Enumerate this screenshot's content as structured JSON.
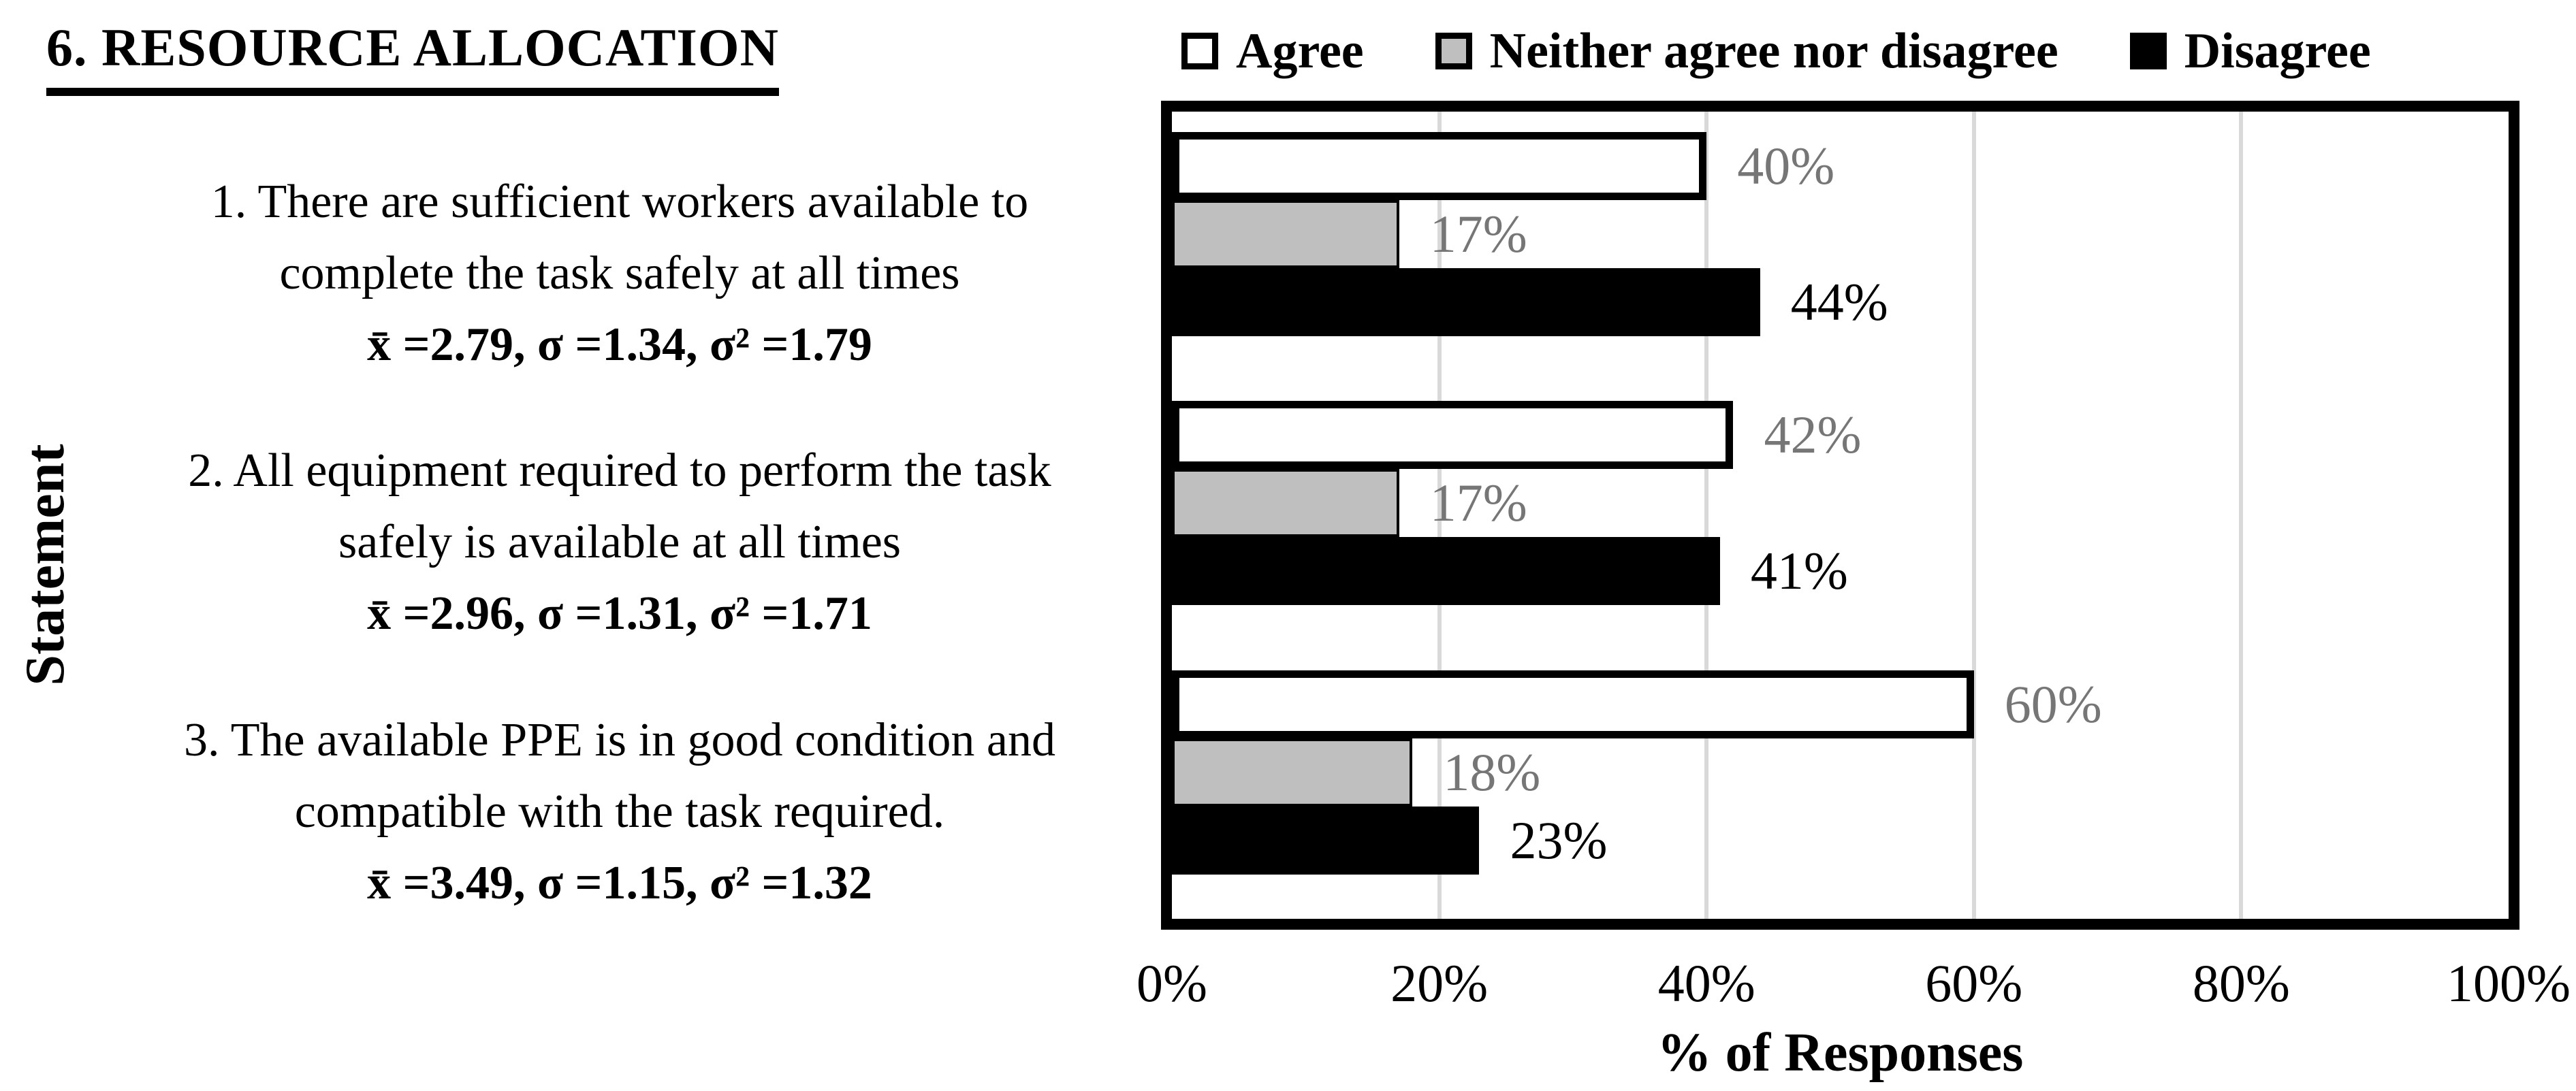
{
  "chart_data": {
    "type": "bar",
    "orientation": "horizontal",
    "title": "6. RESOURCE ALLOCATION",
    "xlabel": "% of Responses",
    "ylabel": "Statement",
    "xlim": [
      0,
      100
    ],
    "x_ticks": [
      "0%",
      "20%",
      "40%",
      "60%",
      "80%",
      "100%"
    ],
    "x_tick_values": [
      0,
      20,
      40,
      60,
      80,
      100
    ],
    "grid": "vertical-major",
    "legend_position": "top",
    "categories": [
      {
        "lines": [
          "1. There are sufficient workers available to",
          "complete the task safely at all times"
        ],
        "stats": "x̄ =2.79, σ =1.34, σ² =1.79"
      },
      {
        "lines": [
          "2. All equipment required to perform the task",
          "safely is available at all times"
        ],
        "stats": "x̄ =2.96, σ =1.31, σ² =1.71"
      },
      {
        "lines": [
          "3. The available PPE is in good condition and",
          "compatible with the task required."
        ],
        "stats": "x̄ =3.49, σ =1.15, σ² =1.32"
      }
    ],
    "series": [
      {
        "name": "Agree",
        "values": [
          40,
          42,
          60
        ],
        "data_labels": [
          "40%",
          "42%",
          "60%"
        ],
        "fill": "#ffffff",
        "label_color": "#767676"
      },
      {
        "name": "Neither agree nor disagree",
        "values": [
          17,
          17,
          18
        ],
        "data_labels": [
          "17%",
          "17%",
          "18%"
        ],
        "fill": "#bfbfbf",
        "label_color": "#767676"
      },
      {
        "name": "Disagree",
        "values": [
          44,
          41,
          23
        ],
        "data_labels": [
          "44%",
          "41%",
          "23%"
        ],
        "fill": "#000000",
        "label_color": "#000000"
      }
    ]
  },
  "colors": {
    "gridline": "#d9d9d9",
    "plot_border": "#000000",
    "bar_border": "#000000",
    "gray_fill": "#bfbfbf",
    "gray_label": "#767676"
  }
}
